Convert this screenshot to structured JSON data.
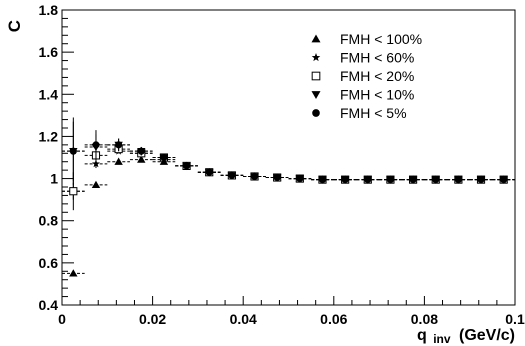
{
  "chart_data": {
    "type": "scatter",
    "ylabel": "C",
    "xlabel_main": "q",
    "xlabel_sub": "inv",
    "xlabel_unit": "(GeV/c)",
    "xlim": [
      0,
      0.1
    ],
    "ylim": [
      0.4,
      1.8
    ],
    "x_ticks": [
      0,
      0.02,
      0.04,
      0.06,
      0.08,
      0.1
    ],
    "x_tick_labels": [
      "0",
      "0.02",
      "0.04",
      "0.06",
      "0.08",
      "0.1"
    ],
    "y_ticks": [
      0.4,
      0.6,
      0.8,
      1.0,
      1.2,
      1.4,
      1.6,
      1.8
    ],
    "y_tick_labels": [
      "0.4",
      "0.6",
      "0.8",
      "1",
      "1.2",
      "1.4",
      "1.6",
      "1.8"
    ],
    "grid": false,
    "legend_position": "top-right",
    "x": [
      0.0025,
      0.0075,
      0.0125,
      0.0175,
      0.0225,
      0.0275,
      0.0325,
      0.0375,
      0.0425,
      0.0475,
      0.0525,
      0.0575,
      0.0625,
      0.0675,
      0.0725,
      0.0775,
      0.0825,
      0.0875,
      0.0925,
      0.0975
    ],
    "series": [
      {
        "name": "FMH < 100%",
        "marker": "triangle-up",
        "values": [
          0.55,
          0.97,
          1.08,
          1.09,
          1.08,
          1.06,
          1.03,
          1.015,
          1.01,
          1.005,
          1.0,
          0.995,
          0.995,
          0.995,
          0.995,
          0.995,
          0.995,
          0.995,
          0.995,
          0.995
        ],
        "errors": [
          0.01,
          0.01,
          0.01,
          0.01,
          0.01,
          0.01,
          0.005,
          0.005,
          0.005,
          0.005,
          0.005,
          0.005,
          0.005,
          0.005,
          0.005,
          0.005,
          0.005,
          0.005,
          0.005,
          0.005
        ]
      },
      {
        "name": "FMH < 60%",
        "marker": "star",
        "values": [
          0.94,
          1.07,
          1.13,
          1.12,
          1.09,
          1.06,
          1.03,
          1.015,
          1.01,
          1.005,
          1.0,
          0.995,
          0.995,
          0.995,
          0.995,
          0.995,
          0.995,
          0.995,
          0.995,
          0.995
        ],
        "errors": [
          0.04,
          0.02,
          0.01,
          0.01,
          0.01,
          0.01,
          0.005,
          0.005,
          0.005,
          0.005,
          0.005,
          0.005,
          0.005,
          0.005,
          0.005,
          0.005,
          0.005,
          0.005,
          0.005,
          0.005
        ]
      },
      {
        "name": "FMH < 20%",
        "marker": "square-open",
        "values": [
          0.94,
          1.11,
          1.14,
          1.12,
          1.1,
          1.06,
          1.03,
          1.015,
          1.01,
          1.005,
          1.0,
          0.995,
          0.995,
          0.995,
          0.995,
          0.995,
          0.995,
          0.995,
          0.995,
          0.995
        ],
        "errors": [
          0.09,
          0.05,
          0.02,
          0.01,
          0.01,
          0.01,
          0.005,
          0.005,
          0.005,
          0.005,
          0.005,
          0.005,
          0.005,
          0.005,
          0.005,
          0.005,
          0.005,
          0.005,
          0.005,
          0.005
        ]
      },
      {
        "name": "FMH < 10%",
        "marker": "triangle-down",
        "values": [
          1.13,
          1.15,
          1.16,
          1.13,
          1.1,
          1.06,
          1.03,
          1.015,
          1.01,
          1.005,
          1.0,
          0.995,
          0.995,
          0.995,
          0.995,
          0.995,
          0.995,
          0.995,
          0.995,
          0.995
        ],
        "errors": [
          0.14,
          0.06,
          0.03,
          0.02,
          0.01,
          0.01,
          0.005,
          0.005,
          0.005,
          0.005,
          0.005,
          0.005,
          0.005,
          0.005,
          0.005,
          0.005,
          0.005,
          0.005,
          0.005,
          0.005
        ]
      },
      {
        "name": "FMH < 5%",
        "marker": "circle",
        "values": [
          1.13,
          1.16,
          1.16,
          1.13,
          1.1,
          1.06,
          1.03,
          1.015,
          1.01,
          1.005,
          1.0,
          0.995,
          0.995,
          0.995,
          0.995,
          0.995,
          0.995,
          0.995,
          0.995,
          0.995
        ],
        "errors": [
          0.16,
          0.07,
          0.03,
          0.02,
          0.01,
          0.01,
          0.005,
          0.005,
          0.005,
          0.005,
          0.005,
          0.005,
          0.005,
          0.005,
          0.005,
          0.005,
          0.005,
          0.005,
          0.005,
          0.005
        ]
      }
    ]
  }
}
